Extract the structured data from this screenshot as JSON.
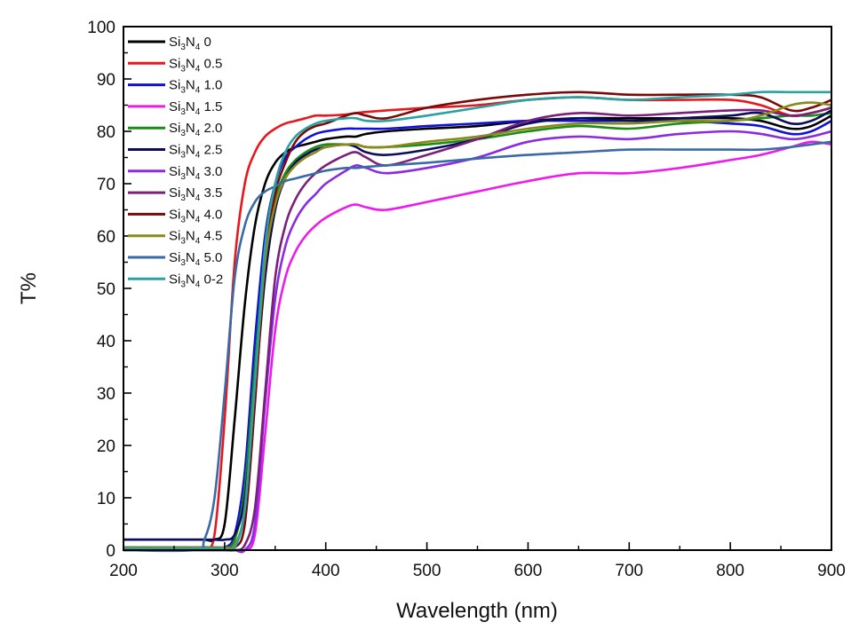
{
  "chart_data": {
    "type": "line",
    "title": "",
    "xlabel": "Wavelength (nm)",
    "ylabel": "T%",
    "xlim": [
      200,
      900
    ],
    "ylim": [
      0,
      100
    ],
    "xticks": [
      200,
      300,
      400,
      500,
      600,
      700,
      800,
      900
    ],
    "yticks": [
      0,
      10,
      20,
      30,
      40,
      50,
      60,
      70,
      80,
      90,
      100
    ],
    "grid": false,
    "legend_position": "top-left",
    "x": [
      200,
      270,
      280,
      290,
      300,
      310,
      320,
      330,
      340,
      350,
      360,
      370,
      380,
      390,
      400,
      420,
      430,
      440,
      460,
      500,
      550,
      600,
      650,
      700,
      750,
      800,
      830,
      860,
      880,
      900
    ],
    "series": [
      {
        "name": "Si3N4 0",
        "base": "Si",
        "sub1": "3",
        "mid": "N",
        "sub2": "4",
        "suffix": " 0",
        "color": "#000000",
        "values": [
          2,
          2,
          2,
          2,
          5,
          25,
          47,
          62,
          70,
          74,
          76,
          77,
          77.5,
          78,
          78.5,
          79,
          79,
          79.5,
          80,
          80.5,
          81,
          82,
          82.5,
          82.5,
          82.5,
          82.5,
          82,
          80.5,
          81,
          83
        ]
      },
      {
        "name": "Si3N4 0.5",
        "base": "Si",
        "sub1": "3",
        "mid": "N",
        "sub2": "4",
        "suffix": " 0.5",
        "color": "#e8171b",
        "values": [
          0.5,
          0.5,
          0.5,
          3,
          25,
          55,
          70,
          76,
          79,
          80.5,
          81.5,
          82,
          82.5,
          83,
          83,
          83.2,
          83.5,
          83.7,
          84,
          84.5,
          85,
          86,
          86.5,
          86,
          86,
          86,
          85,
          83,
          83.5,
          84.5
        ]
      },
      {
        "name": "Si3N4 1.0",
        "base": "Si",
        "sub1": "3",
        "mid": "N",
        "sub2": "4",
        "suffix": " 1.0",
        "color": "#1010d8",
        "values": [
          0.5,
          0.5,
          0.5,
          0.5,
          0.5,
          3,
          15,
          40,
          60,
          70,
          75,
          77,
          78.5,
          79.5,
          80,
          80.5,
          80.5,
          80.5,
          80.5,
          81,
          81.5,
          82,
          82,
          82,
          82,
          81.5,
          81,
          79.5,
          80,
          82
        ]
      },
      {
        "name": "Si3N4 1.5",
        "base": "Si",
        "sub1": "3",
        "mid": "N",
        "sub2": "4",
        "suffix": " 1.5",
        "color": "#ee1aec",
        "values": [
          0,
          0,
          0,
          0,
          0,
          0,
          0,
          3,
          22,
          42,
          52,
          57,
          60,
          62,
          63.5,
          65.5,
          66,
          65.5,
          65,
          66.5,
          68.5,
          70.5,
          72,
          72,
          73,
          74.5,
          75.5,
          77,
          78,
          77.5
        ]
      },
      {
        "name": "Si3N4 2.0",
        "base": "Si",
        "sub1": "3",
        "mid": "N",
        "sub2": "4",
        "suffix": " 2.0",
        "color": "#1a8a1a",
        "values": [
          0.5,
          0.5,
          0.5,
          0.5,
          0.5,
          2,
          12,
          35,
          57,
          67,
          72,
          74.5,
          76,
          77,
          77.5,
          77.5,
          77.5,
          77,
          77,
          77.5,
          78.5,
          80,
          81,
          80.5,
          81.5,
          82,
          82.5,
          83,
          83,
          83.5
        ]
      },
      {
        "name": "Si3N4 2.5",
        "base": "Si",
        "sub1": "3",
        "mid": "N",
        "sub2": "4",
        "suffix": " 2.5",
        "color": "#0c0c5c",
        "values": [
          2,
          2,
          2,
          2,
          2,
          3,
          10,
          30,
          52,
          65,
          71,
          74,
          75.5,
          76.5,
          77,
          77.5,
          77,
          76,
          75.5,
          76.5,
          78.5,
          81.5,
          82.5,
          82,
          82.5,
          83,
          83.5,
          81.5,
          82,
          84
        ]
      },
      {
        "name": "Si3N4 3.0",
        "base": "Si",
        "sub1": "3",
        "mid": "N",
        "sub2": "4",
        "suffix": " 3.0",
        "color": "#8a2be2",
        "values": [
          0,
          0,
          0,
          0,
          0,
          0,
          0,
          5,
          28,
          48,
          58,
          63,
          66,
          68,
          70,
          72.5,
          73.5,
          73,
          72,
          73,
          75,
          78,
          79,
          78.5,
          79.5,
          80,
          79.5,
          78.5,
          79,
          80
        ]
      },
      {
        "name": "Si3N4 3.5",
        "base": "Si",
        "sub1": "3",
        "mid": "N",
        "sub2": "4",
        "suffix": " 3.5",
        "color": "#7a1f7a",
        "values": [
          0,
          0,
          0,
          0,
          0,
          0,
          1,
          8,
          30,
          52,
          62,
          67,
          70,
          72,
          73.5,
          75.5,
          76,
          75,
          73.5,
          75.5,
          78.5,
          82,
          83.5,
          83,
          83.5,
          84,
          84,
          83,
          83.5,
          84.5
        ]
      },
      {
        "name": "Si3N4 4.0",
        "base": "Si",
        "sub1": "3",
        "mid": "N",
        "sub2": "4",
        "suffix": " 4.0",
        "color": "#7a0a0a",
        "values": [
          0.5,
          0.5,
          0.5,
          0.5,
          0.5,
          0.5,
          5,
          28,
          55,
          68,
          74,
          78,
          80,
          81,
          81.5,
          83,
          83.5,
          83,
          82.5,
          84.5,
          86,
          87,
          87.5,
          87,
          87,
          87,
          86.5,
          84,
          84.5,
          86
        ]
      },
      {
        "name": "Si3N4 4.5",
        "base": "Si",
        "sub1": "3",
        "mid": "N",
        "sub2": "4",
        "suffix": " 4.5",
        "color": "#8a8a1a",
        "values": [
          0.5,
          0.5,
          0.5,
          0.5,
          0.5,
          1,
          8,
          32,
          55,
          66,
          71,
          73.5,
          75,
          76,
          77,
          77.5,
          77.5,
          77,
          77,
          78,
          79,
          80.5,
          81.5,
          81.5,
          82,
          82,
          83,
          85,
          85.5,
          85
        ]
      },
      {
        "name": "Si3N4 5.0",
        "base": "Si",
        "sub1": "3",
        "mid": "N",
        "sub2": "4",
        "suffix": " 5.0",
        "color": "#3a6aa8",
        "values": [
          0,
          0,
          2,
          10,
          30,
          52,
          62,
          66.5,
          68.5,
          69.5,
          70.5,
          71,
          71.5,
          72,
          72.5,
          73,
          73,
          73.2,
          73.5,
          74,
          74.8,
          75.5,
          76,
          76.5,
          76.5,
          76.5,
          76.5,
          77,
          77.5,
          78
        ]
      },
      {
        "name": "Si3N4 0-2",
        "base": "Si",
        "sub1": "3",
        "mid": "N",
        "sub2": "4",
        "suffix": " 0-2",
        "color": "#2aa3a0",
        "values": [
          0.3,
          0.3,
          0.3,
          0.3,
          0.3,
          0.5,
          8,
          32,
          58,
          70,
          76,
          79,
          80.5,
          81.5,
          82,
          82.5,
          82.5,
          82,
          82,
          83,
          84.5,
          86,
          86.5,
          86,
          86.5,
          87,
          87.5,
          87.5,
          87.5,
          87.5
        ]
      }
    ]
  }
}
